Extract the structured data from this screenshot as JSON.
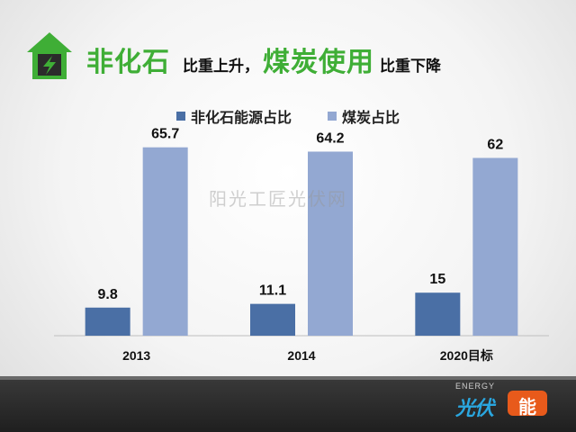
{
  "title": {
    "part1": "非化石",
    "part2": "比重上升，",
    "part3": "煤炭使用",
    "part4": "比重下降"
  },
  "watermark": "阳光工匠光伏网",
  "logo": {
    "small_text": "ENERGY",
    "main_text": "光伏",
    "box_text": "能"
  },
  "colors": {
    "series1": "#4a6fa5",
    "series2": "#93a8d2",
    "title_green": "#3fae36"
  },
  "chart_data": {
    "type": "bar",
    "categories": [
      "2013",
      "2014",
      "2020目标"
    ],
    "series": [
      {
        "name": "非化石能源占比",
        "values": [
          9.8,
          11.1,
          15
        ]
      },
      {
        "name": "煤炭占比",
        "values": [
          65.7,
          64.2,
          62
        ]
      }
    ],
    "legend_position": "top",
    "grid": false,
    "ylim": [
      0,
      70
    ],
    "xlabel": "",
    "ylabel": ""
  }
}
